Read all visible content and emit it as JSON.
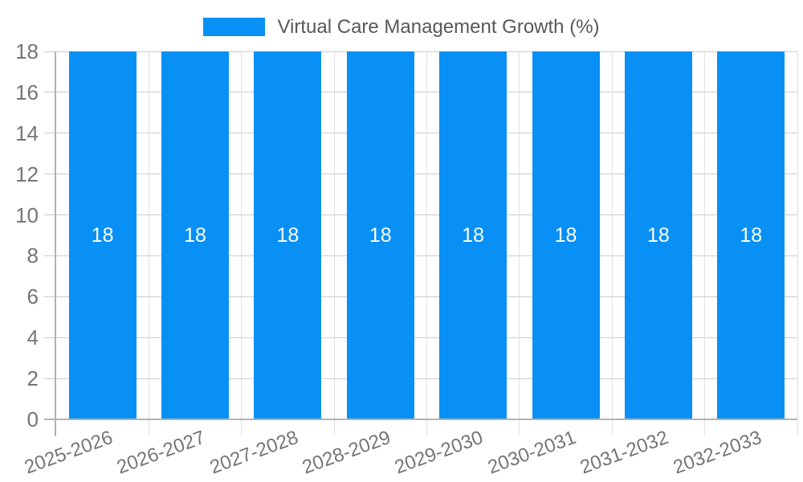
{
  "chart_data": {
    "type": "bar",
    "title": "Virtual Care Management Growth (%)",
    "legend_position": "top",
    "categories": [
      "2025-2026",
      "2026-2027",
      "2027-2028",
      "2028-2029",
      "2029-2030",
      "2030-2031",
      "2031-2032",
      "2032-2033"
    ],
    "series": [
      {
        "name": "Virtual Care Management Growth (%)",
        "values": [
          18,
          18,
          18,
          18,
          18,
          18,
          18,
          18
        ]
      }
    ],
    "bar_value_labels": [
      "18",
      "18",
      "18",
      "18",
      "18",
      "18",
      "18",
      "18"
    ],
    "xlabel": "",
    "ylabel": "",
    "ylim": [
      0,
      18
    ],
    "yticks": [
      0,
      2,
      4,
      6,
      8,
      10,
      12,
      14,
      16,
      18
    ],
    "grid": true,
    "x_tick_rotation_deg": -20,
    "colors": {
      "bar": "#0890f5",
      "bar_label": "#ffffff",
      "axis_line": "#b2b2b2",
      "h_gridline": "#cccccc",
      "v_gridline": "#e0e0e0",
      "tick_label": "#757575",
      "legend_text": "#58585a",
      "background": "#ffffff"
    }
  }
}
